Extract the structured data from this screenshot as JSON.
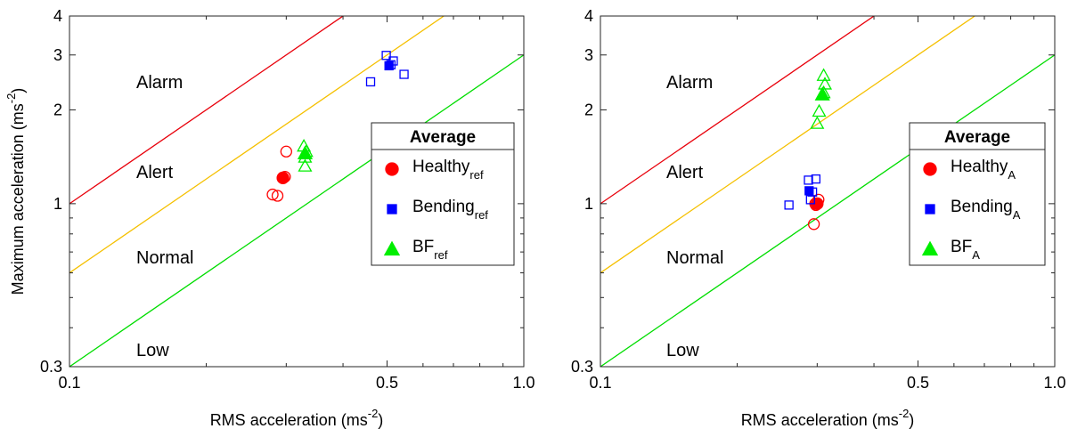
{
  "chart_data": [
    {
      "type": "scatter",
      "x_scale": "log",
      "y_scale": "log",
      "xlim": [
        0.1,
        1.0
      ],
      "ylim": [
        0.3,
        4
      ],
      "xticks": [
        "0.1",
        "0.5",
        "1.0"
      ],
      "xtick_values": [
        0.1,
        0.5,
        1.0
      ],
      "yticks": [
        "0.3",
        "1",
        "2",
        "3",
        "4"
      ],
      "ytick_values": [
        0.3,
        1,
        2,
        3,
        4
      ],
      "xlabel": "RMS acceleration (ms",
      "xlabel_sup": "-2",
      "xlabel_end": ")",
      "ylabel": "Maximum acceleration (ms",
      "ylabel_sup": "-2",
      "ylabel_end": ")",
      "zones": [
        "Alarm",
        "Alert",
        "Normal",
        "Low"
      ],
      "thresholds": [
        {
          "color": "#e8000b",
          "ratio": 10
        },
        {
          "color": "#f5c000",
          "ratio": 6
        },
        {
          "color": "#00dd00",
          "ratio": 3
        }
      ],
      "legend": {
        "title": "Average",
        "entries": [
          {
            "label": "Healthy",
            "sub": "ref",
            "marker": "circle",
            "color": "#ff0000"
          },
          {
            "label": "Bending",
            "sub": "ref",
            "marker": "square",
            "color": "#0000ff"
          },
          {
            "label": "BF",
            "sub": "ref",
            "marker": "triangle",
            "color": "#00ee00"
          }
        ]
      },
      "series": [
        {
          "marker": "circle",
          "color": "#ff0000",
          "points": [
            [
              0.3,
              1.47
            ],
            [
              0.298,
              1.22
            ],
            [
              0.28,
              1.07
            ],
            [
              0.287,
              1.06
            ]
          ],
          "average": [
            0.295,
            1.21
          ]
        },
        {
          "marker": "square",
          "color": "#0000ff",
          "points": [
            [
              0.498,
              2.99
            ],
            [
              0.516,
              2.87
            ],
            [
              0.51,
              2.79
            ],
            [
              0.46,
              2.46
            ],
            [
              0.545,
              2.6
            ]
          ],
          "average": [
            0.505,
            2.77
          ]
        },
        {
          "marker": "triangle",
          "color": "#00ee00",
          "points": [
            [
              0.328,
              1.53
            ],
            [
              0.33,
              1.41
            ],
            [
              0.33,
              1.32
            ],
            [
              0.332,
              1.47
            ]
          ],
          "average": [
            0.33,
            1.45
          ]
        }
      ]
    },
    {
      "type": "scatter",
      "x_scale": "log",
      "y_scale": "log",
      "xlim": [
        0.1,
        1.0
      ],
      "ylim": [
        0.3,
        4
      ],
      "xticks": [
        "0.1",
        "0.5",
        "1.0"
      ],
      "xtick_values": [
        0.1,
        0.5,
        1.0
      ],
      "yticks": [
        "0.3",
        "1",
        "2",
        "3",
        "4"
      ],
      "ytick_values": [
        0.3,
        1,
        2,
        3,
        4
      ],
      "xlabel": "RMS acceleration (ms",
      "xlabel_sup": "-2",
      "xlabel_end": ")",
      "ylabel": "",
      "zones": [
        "Alarm",
        "Alert",
        "Normal",
        "Low"
      ],
      "thresholds": [
        {
          "color": "#e8000b",
          "ratio": 10
        },
        {
          "color": "#f5c000",
          "ratio": 6
        },
        {
          "color": "#00dd00",
          "ratio": 3
        }
      ],
      "legend": {
        "title": "Average",
        "entries": [
          {
            "label": "Healthy",
            "sub": "A",
            "marker": "circle",
            "color": "#ff0000"
          },
          {
            "label": "Bending",
            "sub": "A",
            "marker": "square",
            "color": "#0000ff"
          },
          {
            "label": "BF",
            "sub": "A",
            "marker": "triangle",
            "color": "#00ee00"
          }
        ]
      },
      "series": [
        {
          "marker": "circle",
          "color": "#ff0000",
          "points": [
            [
              0.302,
              1.03
            ],
            [
              0.298,
              0.99
            ],
            [
              0.295,
              0.86
            ],
            [
              0.297,
              1.0
            ]
          ],
          "average": [
            0.3,
            1.0
          ]
        },
        {
          "marker": "square",
          "color": "#0000ff",
          "points": [
            [
              0.287,
              1.19
            ],
            [
              0.298,
              1.2
            ],
            [
              0.293,
              1.09
            ],
            [
              0.29,
              1.03
            ],
            [
              0.26,
              0.99
            ]
          ],
          "average": [
            0.288,
            1.1
          ]
        },
        {
          "marker": "triangle",
          "color": "#00ee00",
          "points": [
            [
              0.31,
              2.58
            ],
            [
              0.312,
              2.42
            ],
            [
              0.31,
              2.27
            ],
            [
              0.303,
              1.98
            ],
            [
              0.3,
              1.81
            ]
          ],
          "average": [
            0.308,
            2.24
          ]
        }
      ]
    }
  ]
}
